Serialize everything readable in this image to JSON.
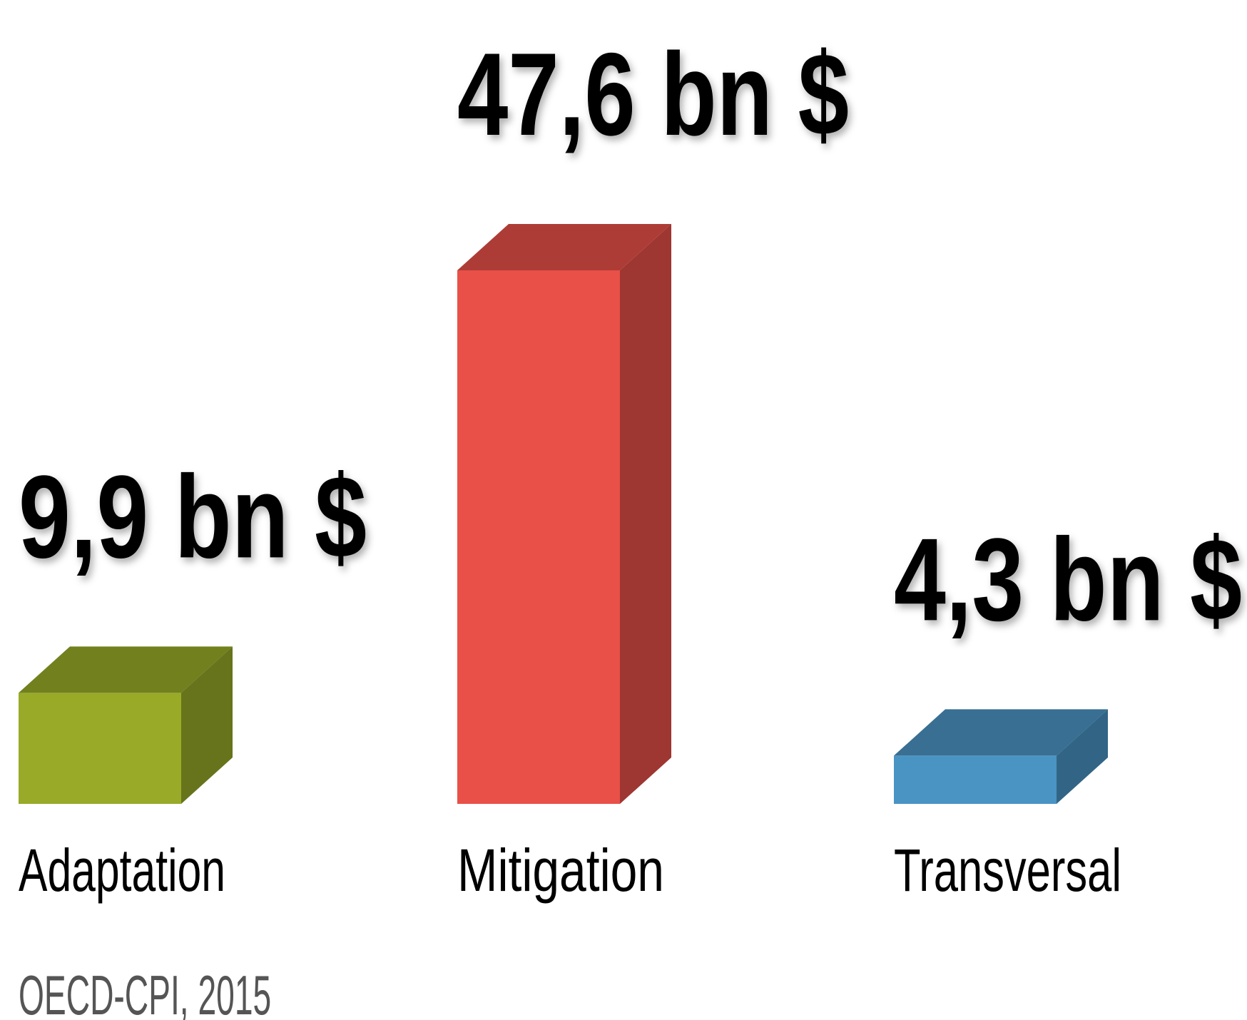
{
  "chart_data": {
    "type": "bar3d",
    "categories": [
      "Adaptation",
      "Mitigation",
      "Transversal"
    ],
    "values": [
      9.9,
      47.6,
      4.3
    ],
    "value_labels": [
      "9,9 bn $",
      "47,6 bn $",
      "4,3 bn $"
    ],
    "colors": [
      "#98aa28",
      "#e85048",
      "#4a94c4"
    ],
    "source": "OECD-CPI, 2015"
  }
}
